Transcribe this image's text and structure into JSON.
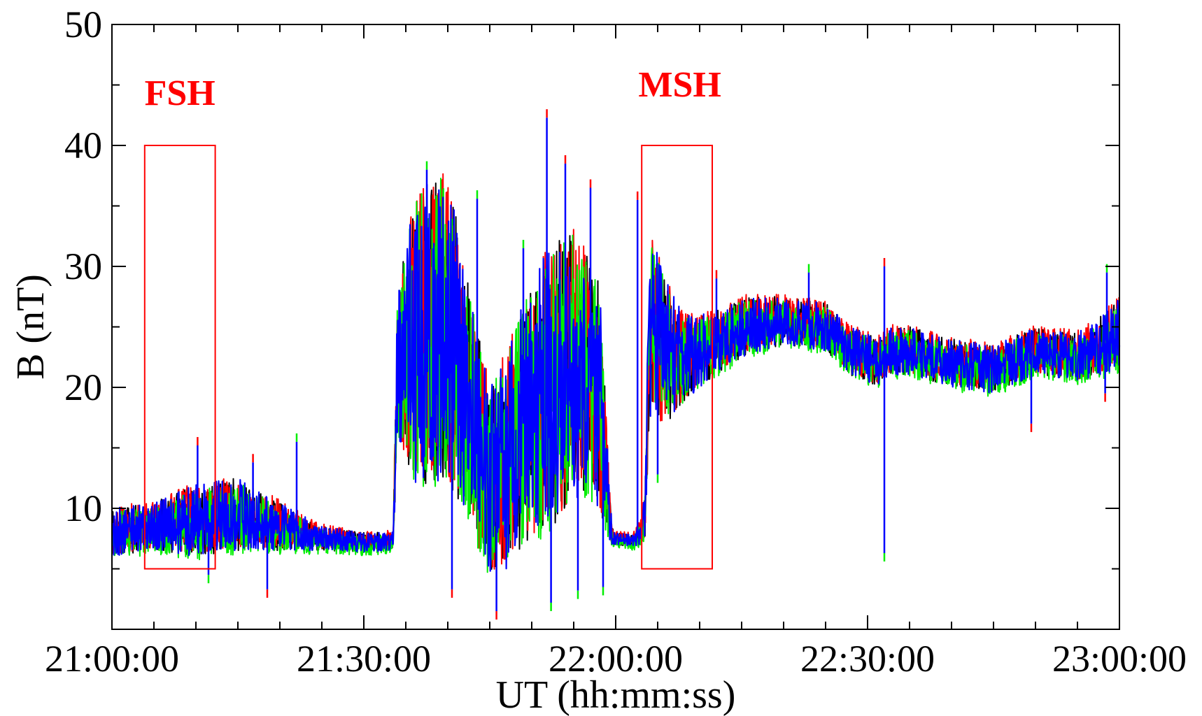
{
  "chart_data": {
    "type": "line",
    "title": "",
    "xlabel": "UT (hh:mm:ss)",
    "ylabel": "B (nT)",
    "x_unit": "minutes after 21:00:00 UT",
    "xlim": [
      0,
      120
    ],
    "ylim": [
      0,
      50
    ],
    "x_ticks": [
      {
        "value": 0,
        "label": "21:00:00"
      },
      {
        "value": 30,
        "label": "21:30:00"
      },
      {
        "value": 60,
        "label": "22:00:00"
      },
      {
        "value": 90,
        "label": "22:30:00"
      },
      {
        "value": 120,
        "label": "23:00:00"
      }
    ],
    "y_ticks": [
      {
        "value": 10,
        "label": "10"
      },
      {
        "value": 20,
        "label": "20"
      },
      {
        "value": 30,
        "label": "30"
      },
      {
        "value": 40,
        "label": "40"
      },
      {
        "value": 50,
        "label": "50"
      }
    ],
    "grid": false,
    "series": [
      {
        "color": "#000000",
        "offset": 0.0
      },
      {
        "color": "#ff0000",
        "offset": 0.2
      },
      {
        "color": "#00ee00",
        "offset": -0.3
      },
      {
        "color": "#0000ff",
        "offset": 0.0
      }
    ],
    "envelope": {
      "t": [
        0,
        5,
        10,
        15,
        20,
        25,
        30,
        33.5,
        34,
        36,
        40,
        42,
        45,
        47,
        49,
        52,
        55,
        58,
        59.5,
        60,
        62,
        63,
        63.5,
        64,
        66,
        68,
        70,
        73,
        75,
        80,
        85,
        88,
        90,
        91,
        93,
        95,
        100,
        105,
        110,
        115,
        118,
        120
      ],
      "center": [
        8,
        8.5,
        9,
        9.5,
        8.5,
        7.5,
        7.2,
        7.3,
        22,
        24,
        25,
        20,
        12,
        14,
        17,
        20,
        22,
        20,
        8,
        7.5,
        7.3,
        8,
        9.5,
        25,
        23,
        22.5,
        23,
        24,
        25,
        25.5,
        25,
        23,
        22.5,
        22,
        23,
        23,
        22,
        21.5,
        23,
        22.5,
        23.5,
        24.5
      ],
      "amp": [
        2,
        2,
        3,
        3,
        2,
        1,
        0.8,
        0.8,
        6,
        12,
        13,
        10,
        8,
        9,
        10,
        12,
        11,
        10,
        1,
        0.5,
        0.5,
        1,
        2,
        8,
        6,
        4,
        3,
        2.5,
        2.5,
        2,
        2,
        2,
        2,
        2,
        2,
        2,
        2,
        2,
        2,
        2,
        2.5,
        3
      ]
    },
    "spikes": [
      {
        "t": 10.2,
        "y": 15.2
      },
      {
        "t": 11.5,
        "y": 4.5
      },
      {
        "t": 16.8,
        "y": 13.8
      },
      {
        "t": 22,
        "y": 15.5
      },
      {
        "t": 18.5,
        "y": 3.3
      },
      {
        "t": 37.5,
        "y": 38
      },
      {
        "t": 40.5,
        "y": 3.3
      },
      {
        "t": 43.5,
        "y": 35.6
      },
      {
        "t": 45.8,
        "y": 1.5
      },
      {
        "t": 49,
        "y": 31.5
      },
      {
        "t": 51.8,
        "y": 42.3
      },
      {
        "t": 52.3,
        "y": 2.2
      },
      {
        "t": 54,
        "y": 38.5
      },
      {
        "t": 55.5,
        "y": 3.2
      },
      {
        "t": 57,
        "y": 36.5
      },
      {
        "t": 58.5,
        "y": 3.5
      },
      {
        "t": 62.6,
        "y": 35.5
      },
      {
        "t": 65,
        "y": 12.8
      },
      {
        "t": 72,
        "y": 29
      },
      {
        "t": 83,
        "y": 29.5
      },
      {
        "t": 92,
        "y": 30
      },
      {
        "t": 92,
        "y": 6.3
      },
      {
        "t": 109.5,
        "y": 17
      },
      {
        "t": 118.5,
        "y": 29.5
      },
      {
        "t": 118.3,
        "y": 19.5
      }
    ],
    "annotations": [
      {
        "label": "FSH",
        "color": "#ff0000",
        "x_range": [
          3.9,
          12.3
        ],
        "y_range": [
          5,
          40
        ]
      },
      {
        "label": "MSH",
        "color": "#ff0000",
        "x_range": [
          63.1,
          71.5
        ],
        "y_range": [
          5,
          40
        ]
      }
    ]
  }
}
